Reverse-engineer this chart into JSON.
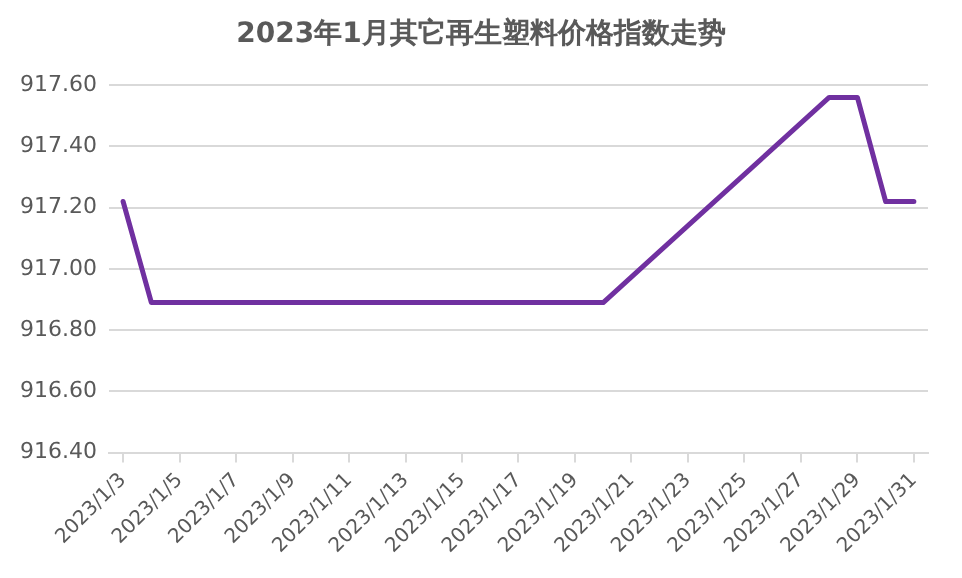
{
  "chart_data": {
    "type": "line",
    "title": "2023年1月其它再生塑料价格指数走势",
    "categories": [
      "2023/1/3",
      null,
      "2023/1/5",
      null,
      "2023/1/7",
      null,
      "2023/1/9",
      null,
      "2023/1/11",
      null,
      "2023/1/13",
      null,
      "2023/1/15",
      null,
      "2023/1/17",
      null,
      "2023/1/19",
      null,
      "2023/1/21",
      null,
      "2023/1/23",
      null,
      "2023/1/25",
      null,
      "2023/1/27",
      null,
      "2023/1/29",
      null,
      "2023/1/31"
    ],
    "series": [
      {
        "color": "#7030a0",
        "values": [
          917.22,
          916.89,
          916.89,
          916.89,
          null,
          null,
          916.89,
          916.89,
          916.89,
          916.89,
          916.89,
          null,
          null,
          916.89,
          916.89,
          916.89,
          916.89,
          916.89,
          null,
          null,
          null,
          null,
          null,
          null,
          null,
          917.56,
          917.56,
          917.22,
          917.22
        ]
      }
    ],
    "ylim": [
      916.4,
      917.6
    ],
    "yticks": [
      {
        "value": 916.4,
        "label": "916.40"
      },
      {
        "value": 916.6,
        "label": "916.60"
      },
      {
        "value": 916.8,
        "label": "916.80"
      },
      {
        "value": 917.0,
        "label": "917.00"
      },
      {
        "value": 917.2,
        "label": "917.20"
      },
      {
        "value": 917.4,
        "label": "917.40"
      },
      {
        "value": 917.6,
        "label": "917.60"
      }
    ],
    "grid": "y",
    "legend": false,
    "marker": "none",
    "line_style": "solid"
  }
}
